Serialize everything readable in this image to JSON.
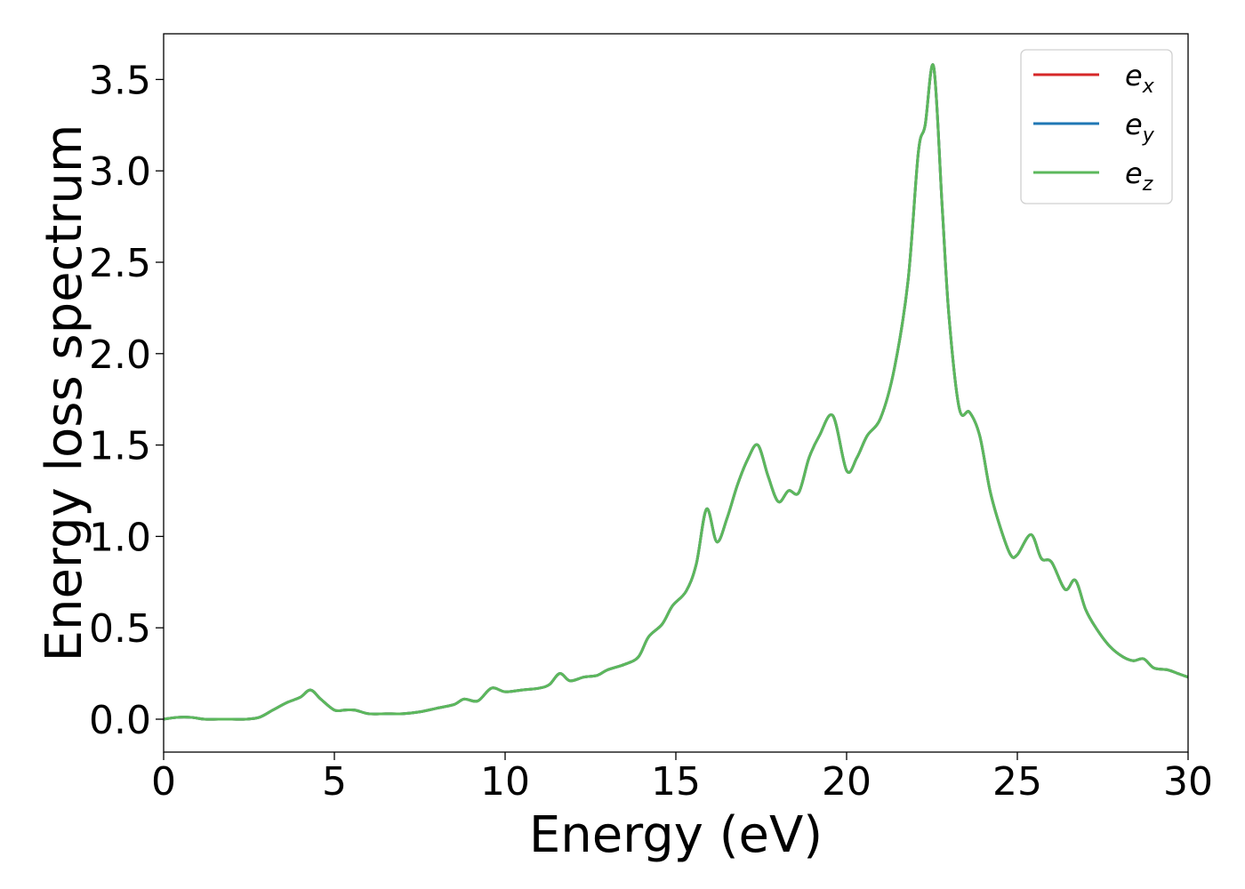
{
  "chart_data": {
    "type": "line",
    "title": "",
    "xlabel": "Energy (eV)",
    "ylabel": "Energy loss spectrum",
    "xlim": [
      0,
      30
    ],
    "ylim": [
      -0.18,
      3.75
    ],
    "xticks": [
      0,
      5,
      10,
      15,
      20,
      25,
      30
    ],
    "yticks": [
      0.0,
      0.5,
      1.0,
      1.5,
      2.0,
      2.5,
      3.0,
      3.5
    ],
    "xtick_labels": [
      "0",
      "5",
      "10",
      "15",
      "20",
      "25",
      "30"
    ],
    "ytick_labels": [
      "0.0",
      "0.5",
      "1.0",
      "1.5",
      "2.0",
      "2.5",
      "3.0",
      "3.5"
    ],
    "grid": false,
    "legend_position": "top-right",
    "series": [
      {
        "name": "e_x",
        "legend_base": "e",
        "legend_sub": "x",
        "color": "#d62728",
        "x": [
          0,
          0.4,
          0.8,
          1.2,
          1.6,
          2.0,
          2.4,
          2.8,
          3.2,
          3.6,
          4.0,
          4.3,
          4.6,
          5.0,
          5.3,
          5.6,
          6.0,
          6.5,
          7.0,
          7.5,
          8.0,
          8.5,
          8.8,
          9.2,
          9.6,
          10.0,
          10.5,
          11.0,
          11.3,
          11.6,
          11.9,
          12.3,
          12.7,
          13.0,
          13.5,
          13.9,
          14.2,
          14.6,
          14.9,
          15.3,
          15.6,
          15.9,
          16.2,
          16.5,
          16.8,
          17.1,
          17.4,
          17.7,
          18.0,
          18.3,
          18.6,
          18.9,
          19.2,
          19.6,
          20.0,
          20.3,
          20.6,
          21.0,
          21.4,
          21.8,
          22.1,
          22.3,
          22.55,
          22.8,
          23.0,
          23.3,
          23.6,
          23.9,
          24.2,
          24.5,
          24.8,
          25.0,
          25.4,
          25.7,
          26.0,
          26.4,
          26.7,
          27.0,
          27.3,
          27.7,
          28.1,
          28.4,
          28.7,
          29.0,
          29.4,
          29.7,
          30.0
        ],
        "y": [
          0.0,
          0.01,
          0.01,
          0.0,
          0.0,
          0.0,
          0.0,
          0.01,
          0.05,
          0.09,
          0.12,
          0.16,
          0.11,
          0.05,
          0.05,
          0.05,
          0.03,
          0.03,
          0.03,
          0.04,
          0.06,
          0.08,
          0.11,
          0.1,
          0.17,
          0.15,
          0.16,
          0.17,
          0.19,
          0.25,
          0.21,
          0.23,
          0.24,
          0.27,
          0.3,
          0.34,
          0.45,
          0.52,
          0.62,
          0.7,
          0.85,
          1.15,
          0.97,
          1.1,
          1.28,
          1.42,
          1.5,
          1.33,
          1.19,
          1.25,
          1.24,
          1.43,
          1.55,
          1.66,
          1.36,
          1.43,
          1.55,
          1.65,
          1.92,
          2.4,
          3.1,
          3.25,
          3.57,
          2.8,
          2.2,
          1.7,
          1.68,
          1.55,
          1.25,
          1.05,
          0.9,
          0.9,
          1.01,
          0.88,
          0.86,
          0.71,
          0.76,
          0.6,
          0.5,
          0.4,
          0.34,
          0.32,
          0.33,
          0.28,
          0.27,
          0.25,
          0.23
        ]
      },
      {
        "name": "e_y",
        "legend_base": "e",
        "legend_sub": "y",
        "color": "#1f77b4",
        "x": [
          0,
          0.4,
          0.8,
          1.2,
          1.6,
          2.0,
          2.4,
          2.8,
          3.2,
          3.6,
          4.0,
          4.3,
          4.6,
          5.0,
          5.3,
          5.6,
          6.0,
          6.5,
          7.0,
          7.5,
          8.0,
          8.5,
          8.8,
          9.2,
          9.6,
          10.0,
          10.5,
          11.0,
          11.3,
          11.6,
          11.9,
          12.3,
          12.7,
          13.0,
          13.5,
          13.9,
          14.2,
          14.6,
          14.9,
          15.3,
          15.6,
          15.9,
          16.2,
          16.5,
          16.8,
          17.1,
          17.4,
          17.7,
          18.0,
          18.3,
          18.6,
          18.9,
          19.2,
          19.6,
          20.0,
          20.3,
          20.6,
          21.0,
          21.4,
          21.8,
          22.1,
          22.3,
          22.55,
          22.8,
          23.0,
          23.3,
          23.6,
          23.9,
          24.2,
          24.5,
          24.8,
          25.0,
          25.4,
          25.7,
          26.0,
          26.4,
          26.7,
          27.0,
          27.3,
          27.7,
          28.1,
          28.4,
          28.7,
          29.0,
          29.4,
          29.7,
          30.0
        ],
        "y": [
          0.0,
          0.01,
          0.01,
          0.0,
          0.0,
          0.0,
          0.0,
          0.01,
          0.05,
          0.09,
          0.12,
          0.16,
          0.11,
          0.05,
          0.05,
          0.05,
          0.03,
          0.03,
          0.03,
          0.04,
          0.06,
          0.08,
          0.11,
          0.1,
          0.17,
          0.15,
          0.16,
          0.17,
          0.19,
          0.25,
          0.21,
          0.23,
          0.24,
          0.27,
          0.3,
          0.34,
          0.45,
          0.52,
          0.62,
          0.7,
          0.85,
          1.15,
          0.97,
          1.1,
          1.28,
          1.42,
          1.5,
          1.33,
          1.19,
          1.25,
          1.24,
          1.43,
          1.55,
          1.66,
          1.36,
          1.43,
          1.55,
          1.65,
          1.92,
          2.4,
          3.1,
          3.25,
          3.57,
          2.8,
          2.2,
          1.7,
          1.68,
          1.55,
          1.25,
          1.05,
          0.9,
          0.9,
          1.01,
          0.88,
          0.86,
          0.71,
          0.76,
          0.6,
          0.5,
          0.4,
          0.34,
          0.32,
          0.33,
          0.28,
          0.27,
          0.25,
          0.23
        ]
      },
      {
        "name": "e_z",
        "legend_base": "e",
        "legend_sub": "z",
        "color": "#5cb85c",
        "x": [
          0,
          0.4,
          0.8,
          1.2,
          1.6,
          2.0,
          2.4,
          2.8,
          3.2,
          3.6,
          4.0,
          4.3,
          4.6,
          5.0,
          5.3,
          5.6,
          6.0,
          6.5,
          7.0,
          7.5,
          8.0,
          8.5,
          8.8,
          9.2,
          9.6,
          10.0,
          10.5,
          11.0,
          11.3,
          11.6,
          11.9,
          12.3,
          12.7,
          13.0,
          13.5,
          13.9,
          14.2,
          14.6,
          14.9,
          15.3,
          15.6,
          15.9,
          16.2,
          16.5,
          16.8,
          17.1,
          17.4,
          17.7,
          18.0,
          18.3,
          18.6,
          18.9,
          19.2,
          19.6,
          20.0,
          20.3,
          20.6,
          21.0,
          21.4,
          21.8,
          22.1,
          22.3,
          22.55,
          22.8,
          23.0,
          23.3,
          23.6,
          23.9,
          24.2,
          24.5,
          24.8,
          25.0,
          25.4,
          25.7,
          26.0,
          26.4,
          26.7,
          27.0,
          27.3,
          27.7,
          28.1,
          28.4,
          28.7,
          29.0,
          29.4,
          29.7,
          30.0
        ],
        "y": [
          0.0,
          0.01,
          0.01,
          0.0,
          0.0,
          0.0,
          0.0,
          0.01,
          0.05,
          0.09,
          0.12,
          0.16,
          0.11,
          0.05,
          0.05,
          0.05,
          0.03,
          0.03,
          0.03,
          0.04,
          0.06,
          0.08,
          0.11,
          0.1,
          0.17,
          0.15,
          0.16,
          0.17,
          0.19,
          0.25,
          0.21,
          0.23,
          0.24,
          0.27,
          0.3,
          0.34,
          0.45,
          0.52,
          0.62,
          0.7,
          0.85,
          1.15,
          0.97,
          1.1,
          1.28,
          1.42,
          1.5,
          1.33,
          1.19,
          1.25,
          1.24,
          1.43,
          1.55,
          1.66,
          1.36,
          1.43,
          1.55,
          1.65,
          1.92,
          2.4,
          3.1,
          3.25,
          3.57,
          2.8,
          2.2,
          1.7,
          1.68,
          1.55,
          1.25,
          1.05,
          0.9,
          0.9,
          1.01,
          0.88,
          0.86,
          0.71,
          0.76,
          0.6,
          0.5,
          0.4,
          0.34,
          0.32,
          0.33,
          0.28,
          0.27,
          0.25,
          0.23
        ]
      }
    ]
  }
}
